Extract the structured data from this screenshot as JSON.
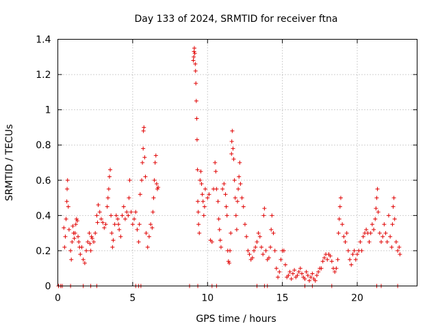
{
  "chart_data": {
    "type": "scatter",
    "title": "Day 133 of 2024, SRMTID for receiver ftna",
    "xlabel": "GPS time / hours",
    "ylabel": "SRMTID / TECUs",
    "xlim": [
      0,
      24
    ],
    "ylim": [
      0,
      1.4
    ],
    "xticks": [
      0,
      5,
      10,
      15,
      20
    ],
    "xtick_labels": [
      "0",
      "5",
      "10",
      "15",
      "20"
    ],
    "yticks": [
      0,
      0.2,
      0.4,
      0.6,
      0.8,
      1.0,
      1.2,
      1.4
    ],
    "ytick_labels": [
      "0",
      "0.2",
      "0.4",
      "0.6",
      "0.8",
      "1",
      "1.2",
      "1.4"
    ],
    "grid": true,
    "marker": "+",
    "series": [
      {
        "name": "SRMTID",
        "color": "#e00000",
        "points": [
          [
            0.05,
            0.0
          ],
          [
            0.2,
            0.0
          ],
          [
            0.3,
            0.0
          ],
          [
            0.4,
            0.33
          ],
          [
            0.45,
            0.22
          ],
          [
            0.5,
            0.28
          ],
          [
            0.55,
            0.38
          ],
          [
            0.6,
            0.48
          ],
          [
            0.62,
            0.55
          ],
          [
            0.65,
            0.6
          ],
          [
            0.7,
            0.45
          ],
          [
            0.75,
            0.32
          ],
          [
            0.85,
            0.2
          ],
          [
            0.9,
            0.15
          ],
          [
            0.95,
            0.25
          ],
          [
            1.0,
            0.34
          ],
          [
            1.05,
            0.3
          ],
          [
            1.1,
            0.27
          ],
          [
            1.15,
            0.3
          ],
          [
            1.2,
            0.35
          ],
          [
            1.25,
            0.38
          ],
          [
            1.3,
            0.37
          ],
          [
            1.35,
            0.28
          ],
          [
            1.4,
            0.25
          ],
          [
            1.45,
            0.22
          ],
          [
            1.5,
            0.18
          ],
          [
            1.6,
            0.22
          ],
          [
            1.7,
            0.15
          ],
          [
            1.8,
            0.13
          ],
          [
            1.9,
            0.2
          ],
          [
            2.0,
            0.25
          ],
          [
            2.1,
            0.3
          ],
          [
            2.15,
            0.24
          ],
          [
            2.2,
            0.2
          ],
          [
            2.25,
            0.28
          ],
          [
            2.3,
            0.27
          ],
          [
            2.4,
            0.25
          ],
          [
            2.5,
            0.3
          ],
          [
            2.6,
            0.4
          ],
          [
            2.65,
            0.36
          ],
          [
            2.7,
            0.46
          ],
          [
            2.8,
            0.42
          ],
          [
            2.9,
            0.38
          ],
          [
            3.0,
            0.36
          ],
          [
            3.1,
            0.33
          ],
          [
            3.2,
            0.35
          ],
          [
            3.3,
            0.45
          ],
          [
            3.35,
            0.5
          ],
          [
            3.4,
            0.55
          ],
          [
            3.45,
            0.62
          ],
          [
            3.5,
            0.66
          ],
          [
            3.55,
            0.4
          ],
          [
            3.6,
            0.3
          ],
          [
            3.65,
            0.22
          ],
          [
            3.7,
            0.26
          ],
          [
            3.8,
            0.35
          ],
          [
            3.9,
            0.4
          ],
          [
            4.0,
            0.38
          ],
          [
            4.05,
            0.35
          ],
          [
            4.1,
            0.32
          ],
          [
            4.2,
            0.28
          ],
          [
            4.3,
            0.4
          ],
          [
            4.4,
            0.45
          ],
          [
            4.5,
            0.38
          ],
          [
            4.6,
            0.42
          ],
          [
            4.7,
            0.4
          ],
          [
            4.75,
            0.5
          ],
          [
            4.8,
            0.6
          ],
          [
            4.9,
            0.42
          ],
          [
            5.0,
            0.35
          ],
          [
            5.1,
            0.38
          ],
          [
            5.2,
            0.42
          ],
          [
            5.3,
            0.32
          ],
          [
            5.4,
            0.25
          ],
          [
            5.45,
            0.35
          ],
          [
            5.5,
            0.52
          ],
          [
            5.6,
            0.6
          ],
          [
            5.65,
            0.7
          ],
          [
            5.7,
            0.78
          ],
          [
            5.72,
            0.88
          ],
          [
            5.75,
            0.9
          ],
          [
            5.8,
            0.73
          ],
          [
            5.85,
            0.62
          ],
          [
            5.9,
            0.3
          ],
          [
            6.0,
            0.22
          ],
          [
            6.1,
            0.28
          ],
          [
            6.2,
            0.35
          ],
          [
            6.3,
            0.33
          ],
          [
            6.35,
            0.42
          ],
          [
            6.4,
            0.5
          ],
          [
            6.45,
            0.6
          ],
          [
            6.5,
            0.7
          ],
          [
            6.55,
            0.74
          ],
          [
            6.6,
            0.58
          ],
          [
            6.65,
            0.55
          ],
          [
            6.7,
            0.56
          ],
          [
            0.05,
            0.0
          ],
          [
            0.2,
            0.0
          ],
          [
            0.85,
            0.0
          ],
          [
            1.7,
            0.0
          ],
          [
            2.2,
            0.0
          ],
          [
            2.6,
            0.0
          ],
          [
            5.2,
            0.0
          ],
          [
            5.4,
            0.0
          ],
          [
            5.55,
            0.0
          ],
          [
            8.8,
            0.0
          ],
          [
            9.35,
            0.0
          ],
          [
            10.3,
            0.0
          ],
          [
            10.6,
            0.0
          ],
          [
            13.3,
            0.0
          ],
          [
            13.8,
            0.0
          ],
          [
            14.0,
            0.0
          ],
          [
            16.5,
            0.0
          ],
          [
            17.0,
            0.0
          ],
          [
            18.3,
            0.0
          ],
          [
            21.3,
            0.0
          ],
          [
            21.6,
            0.0
          ],
          [
            22.7,
            0.0
          ],
          [
            9.05,
            1.28
          ],
          [
            9.08,
            1.3
          ],
          [
            9.1,
            1.33
          ],
          [
            9.12,
            1.35
          ],
          [
            9.15,
            1.32
          ],
          [
            9.18,
            1.26
          ],
          [
            9.2,
            1.22
          ],
          [
            9.22,
            1.15
          ],
          [
            9.25,
            1.05
          ],
          [
            9.28,
            0.95
          ],
          [
            9.3,
            0.83
          ],
          [
            9.33,
            0.66
          ],
          [
            9.35,
            0.48
          ],
          [
            9.38,
            0.42
          ],
          [
            9.4,
            0.35
          ],
          [
            9.45,
            0.3
          ],
          [
            9.5,
            0.6
          ],
          [
            9.55,
            0.65
          ],
          [
            9.6,
            0.58
          ],
          [
            9.65,
            0.52
          ],
          [
            9.7,
            0.48
          ],
          [
            9.75,
            0.4
          ],
          [
            9.8,
            0.45
          ],
          [
            9.85,
            0.55
          ],
          [
            10.0,
            0.5
          ],
          [
            10.1,
            0.52
          ],
          [
            10.2,
            0.26
          ],
          [
            10.3,
            0.25
          ],
          [
            10.4,
            0.55
          ],
          [
            10.5,
            0.7
          ],
          [
            10.55,
            0.65
          ],
          [
            10.6,
            0.55
          ],
          [
            10.7,
            0.48
          ],
          [
            10.75,
            0.38
          ],
          [
            10.8,
            0.32
          ],
          [
            10.85,
            0.26
          ],
          [
            10.9,
            0.22
          ],
          [
            11.0,
            0.55
          ],
          [
            11.1,
            0.58
          ],
          [
            11.2,
            0.52
          ],
          [
            11.25,
            0.45
          ],
          [
            11.3,
            0.4
          ],
          [
            11.35,
            0.2
          ],
          [
            11.4,
            0.14
          ],
          [
            11.45,
            0.13
          ],
          [
            11.5,
            0.2
          ],
          [
            11.55,
            0.3
          ],
          [
            11.6,
            0.75
          ],
          [
            11.62,
            0.82
          ],
          [
            11.65,
            0.88
          ],
          [
            11.7,
            0.78
          ],
          [
            11.75,
            0.72
          ],
          [
            11.8,
            0.6
          ],
          [
            11.85,
            0.5
          ],
          [
            11.9,
            0.4
          ],
          [
            11.95,
            0.32
          ],
          [
            12.0,
            0.48
          ],
          [
            12.05,
            0.55
          ],
          [
            12.1,
            0.62
          ],
          [
            12.15,
            0.7
          ],
          [
            12.2,
            0.58
          ],
          [
            12.3,
            0.5
          ],
          [
            12.4,
            0.45
          ],
          [
            12.5,
            0.35
          ],
          [
            12.6,
            0.28
          ],
          [
            12.7,
            0.2
          ],
          [
            12.8,
            0.18
          ],
          [
            12.9,
            0.15
          ],
          [
            13.0,
            0.16
          ],
          [
            13.1,
            0.2
          ],
          [
            13.2,
            0.22
          ],
          [
            13.3,
            0.25
          ],
          [
            13.4,
            0.3
          ],
          [
            13.5,
            0.28
          ],
          [
            13.6,
            0.22
          ],
          [
            13.7,
            0.18
          ],
          [
            13.75,
            0.4
          ],
          [
            13.8,
            0.44
          ],
          [
            13.9,
            0.2
          ],
          [
            14.0,
            0.15
          ],
          [
            14.1,
            0.16
          ],
          [
            14.2,
            0.22
          ],
          [
            14.25,
            0.32
          ],
          [
            14.3,
            0.4
          ],
          [
            14.4,
            0.3
          ],
          [
            14.5,
            0.2
          ],
          [
            14.6,
            0.1
          ],
          [
            14.7,
            0.05
          ],
          [
            14.8,
            0.08
          ],
          [
            14.9,
            0.15
          ],
          [
            15.0,
            0.2
          ],
          [
            15.1,
            0.2
          ],
          [
            15.2,
            0.12
          ],
          [
            15.3,
            0.05
          ],
          [
            15.4,
            0.06
          ],
          [
            15.5,
            0.08
          ],
          [
            15.6,
            0.04
          ],
          [
            15.7,
            0.07
          ],
          [
            15.8,
            0.09
          ],
          [
            15.9,
            0.05
          ],
          [
            16.0,
            0.06
          ],
          [
            16.1,
            0.08
          ],
          [
            16.2,
            0.1
          ],
          [
            16.3,
            0.07
          ],
          [
            16.4,
            0.05
          ],
          [
            16.5,
            0.04
          ],
          [
            16.6,
            0.08
          ],
          [
            16.7,
            0.06
          ],
          [
            16.8,
            0.03
          ],
          [
            16.9,
            0.05
          ],
          [
            17.0,
            0.07
          ],
          [
            17.1,
            0.04
          ],
          [
            17.2,
            0.03
          ],
          [
            17.3,
            0.06
          ],
          [
            17.4,
            0.08
          ],
          [
            17.5,
            0.1
          ],
          [
            17.6,
            0.1
          ],
          [
            17.7,
            0.14
          ],
          [
            17.8,
            0.16
          ],
          [
            17.9,
            0.18
          ],
          [
            18.0,
            0.15
          ],
          [
            18.1,
            0.18
          ],
          [
            18.2,
            0.17
          ],
          [
            18.3,
            0.14
          ],
          [
            18.4,
            0.1
          ],
          [
            18.5,
            0.08
          ],
          [
            18.6,
            0.1
          ],
          [
            18.7,
            0.15
          ],
          [
            18.75,
            0.3
          ],
          [
            18.8,
            0.38
          ],
          [
            18.85,
            0.45
          ],
          [
            18.9,
            0.5
          ],
          [
            19.0,
            0.35
          ],
          [
            19.1,
            0.28
          ],
          [
            19.2,
            0.25
          ],
          [
            19.3,
            0.3
          ],
          [
            19.4,
            0.2
          ],
          [
            19.5,
            0.15
          ],
          [
            19.6,
            0.12
          ],
          [
            19.7,
            0.18
          ],
          [
            19.8,
            0.2
          ],
          [
            19.9,
            0.15
          ],
          [
            20.0,
            0.18
          ],
          [
            20.1,
            0.2
          ],
          [
            20.2,
            0.25
          ],
          [
            20.3,
            0.2
          ],
          [
            20.4,
            0.28
          ],
          [
            20.5,
            0.3
          ],
          [
            20.6,
            0.32
          ],
          [
            20.7,
            0.3
          ],
          [
            20.8,
            0.25
          ],
          [
            20.9,
            0.3
          ],
          [
            21.0,
            0.35
          ],
          [
            21.1,
            0.32
          ],
          [
            21.2,
            0.38
          ],
          [
            21.25,
            0.44
          ],
          [
            21.3,
            0.5
          ],
          [
            21.35,
            0.55
          ],
          [
            21.4,
            0.42
          ],
          [
            21.5,
            0.3
          ],
          [
            21.6,
            0.25
          ],
          [
            21.7,
            0.28
          ],
          [
            21.8,
            0.35
          ],
          [
            21.9,
            0.3
          ],
          [
            22.0,
            0.25
          ],
          [
            22.1,
            0.4
          ],
          [
            22.2,
            0.28
          ],
          [
            22.3,
            0.22
          ],
          [
            22.35,
            0.35
          ],
          [
            22.4,
            0.45
          ],
          [
            22.45,
            0.5
          ],
          [
            22.5,
            0.38
          ],
          [
            22.6,
            0.25
          ],
          [
            22.7,
            0.2
          ],
          [
            22.8,
            0.22
          ],
          [
            22.85,
            0.18
          ]
        ]
      }
    ]
  }
}
